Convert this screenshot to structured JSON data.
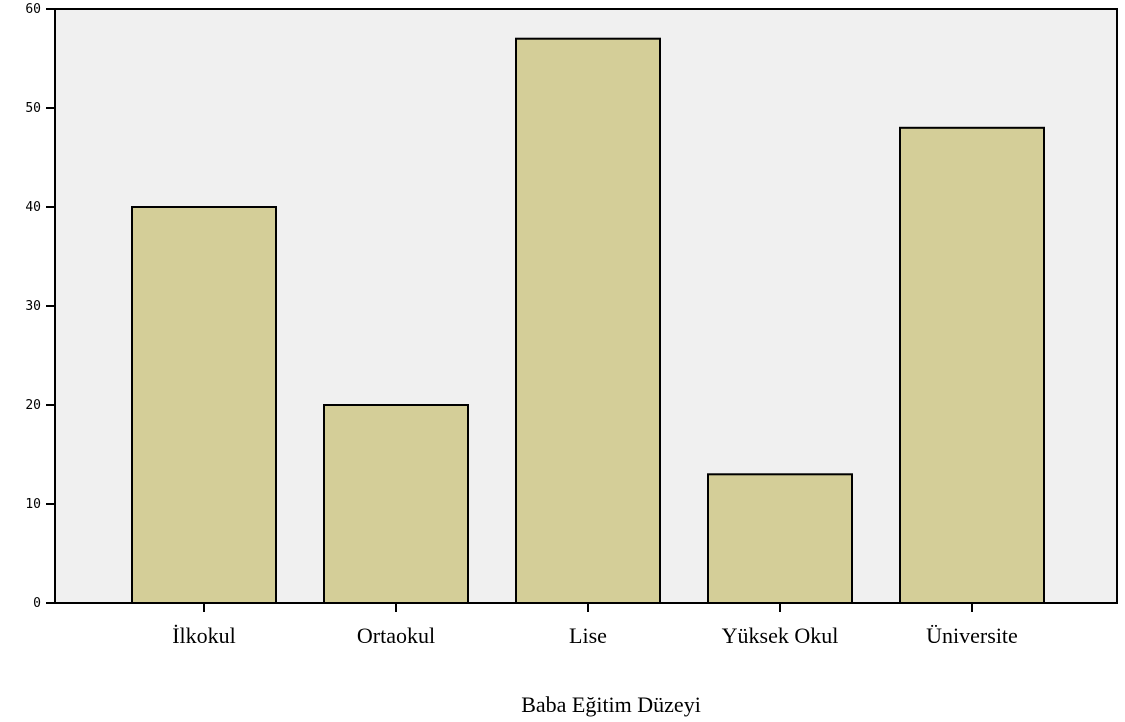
{
  "chart_data": {
    "type": "bar",
    "title": "",
    "xlabel": "Baba Eğitim Düzeyi",
    "ylabel": "",
    "categories": [
      "İlkokul",
      "Ortaokul",
      "Lise",
      "Yüksek Okul",
      "Üniversite"
    ],
    "values": [
      40,
      20,
      57,
      13,
      48
    ],
    "ylim": [
      0,
      60
    ],
    "yticks": [
      0,
      10,
      20,
      30,
      40,
      50,
      60
    ],
    "grid": false,
    "legend": "none",
    "colors": {
      "bar_fill": "#d4ce98",
      "bar_stroke": "#000000",
      "plot_background": "#f0f0f0"
    }
  }
}
